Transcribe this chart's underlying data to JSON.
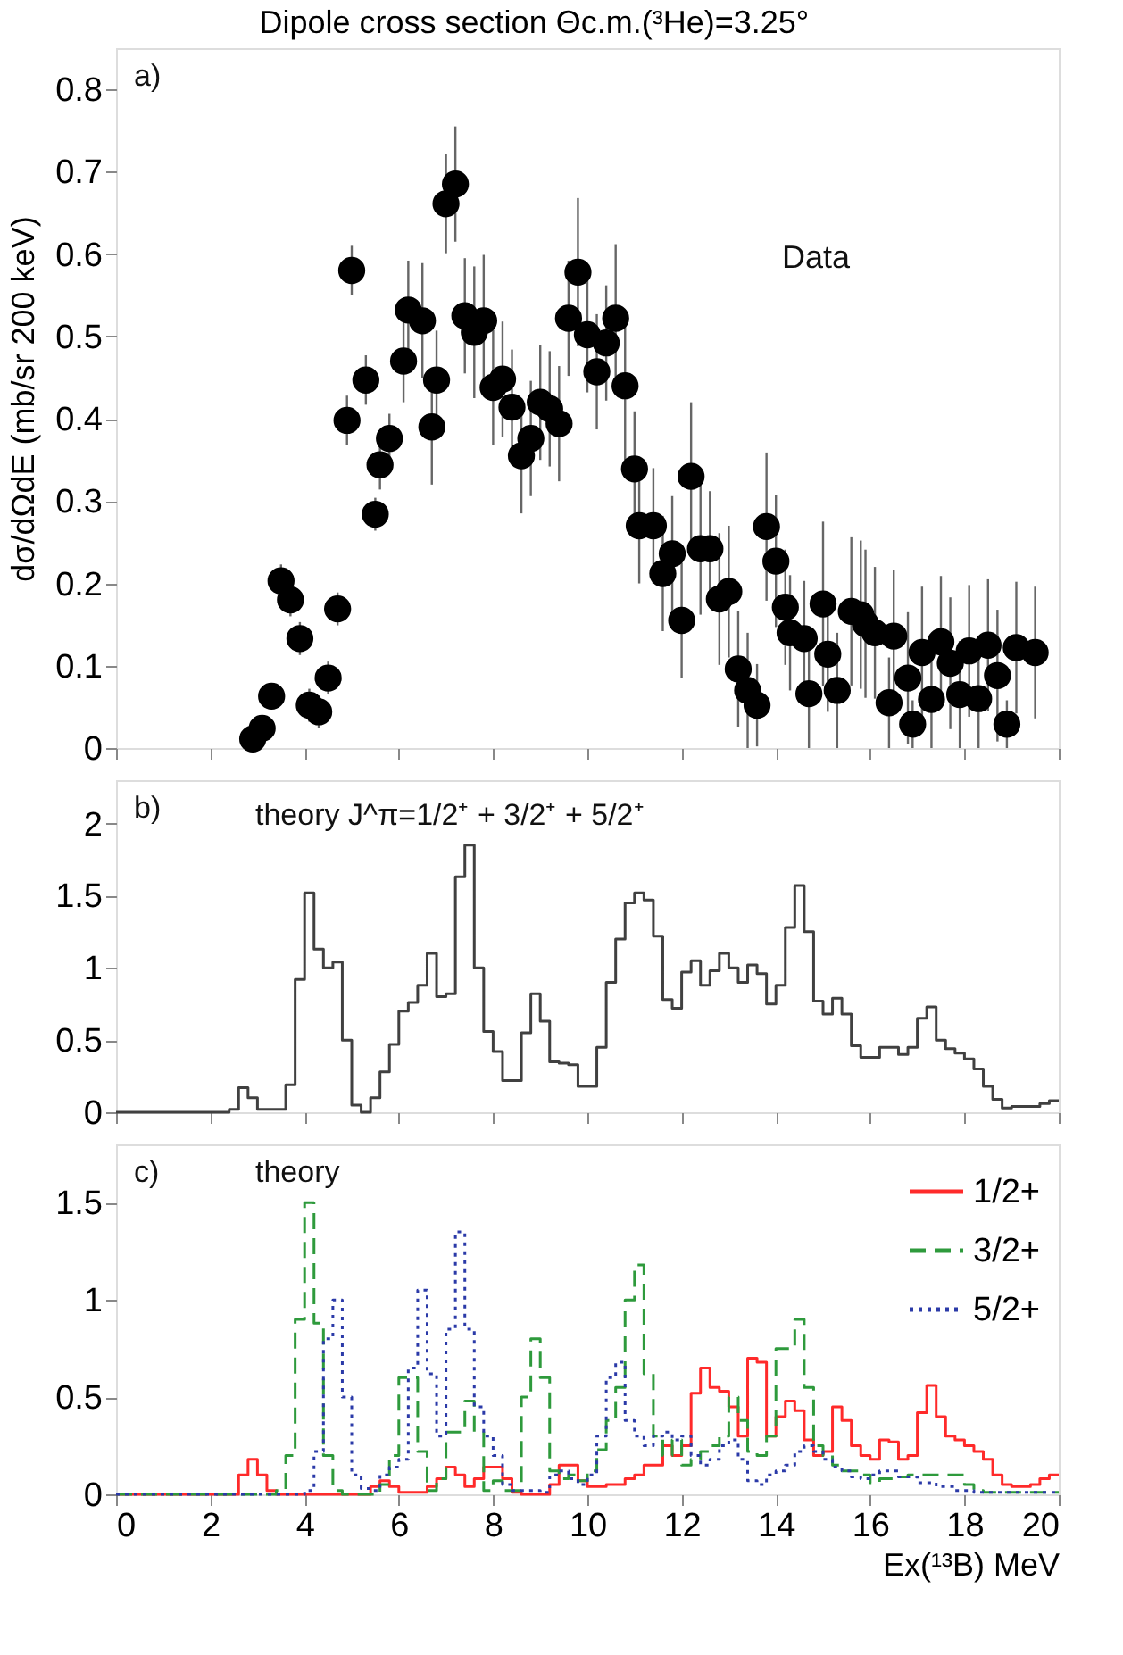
{
  "chart_data": [
    {
      "type": "scatter",
      "title": "Dipole cross section Θc.m.(³He)=3.25°",
      "ylabel": "dσ/dΩdE (mb/sr 200 keV)",
      "annotations": [
        "a)",
        "Data"
      ],
      "xlim": [
        0,
        20
      ],
      "xticks": [
        0,
        2,
        4,
        6,
        8,
        10,
        12,
        14,
        16,
        18,
        20
      ],
      "ylim": [
        0,
        0.85
      ],
      "yticks": [
        0,
        0.1,
        0.2,
        0.3,
        0.4,
        0.5,
        0.6,
        0.7,
        0.8
      ],
      "tick_labels": "y",
      "marker": "circle",
      "color": "#000000",
      "x": [
        2.9,
        3.1,
        3.3,
        3.5,
        3.7,
        3.9,
        4.1,
        4.3,
        4.5,
        4.7,
        4.9,
        5.0,
        5.3,
        5.5,
        5.6,
        5.8,
        6.1,
        6.2,
        6.5,
        6.7,
        6.8,
        7.0,
        7.2,
        7.4,
        7.6,
        7.8,
        8.0,
        8.2,
        8.4,
        8.6,
        8.8,
        9.0,
        9.2,
        9.4,
        9.6,
        9.8,
        10.0,
        10.2,
        10.4,
        10.6,
        10.8,
        11.0,
        11.1,
        11.4,
        11.6,
        11.8,
        12.0,
        12.2,
        12.4,
        12.6,
        12.8,
        13.0,
        13.2,
        13.4,
        13.6,
        13.8,
        14.0,
        14.2,
        14.3,
        14.6,
        14.7,
        15.0,
        15.1,
        15.3,
        15.6,
        15.8,
        15.9,
        16.1,
        16.4,
        16.5,
        16.8,
        16.9,
        17.1,
        17.3,
        17.5,
        17.7,
        17.9,
        18.1,
        18.3,
        18.5,
        18.7,
        18.9,
        19.1,
        19.5
      ],
      "values": [
        0.011,
        0.024,
        0.063,
        0.203,
        0.18,
        0.133,
        0.052,
        0.044,
        0.085,
        0.169,
        0.398,
        0.58,
        0.447,
        0.284,
        0.344,
        0.376,
        0.47,
        0.532,
        0.519,
        0.39,
        0.447,
        0.661,
        0.685,
        0.525,
        0.505,
        0.519,
        0.438,
        0.448,
        0.414,
        0.355,
        0.376,
        0.42,
        0.412,
        0.394,
        0.522,
        0.578,
        0.502,
        0.457,
        0.492,
        0.522,
        0.44,
        0.339,
        0.27,
        0.27,
        0.212,
        0.236,
        0.155,
        0.33,
        0.242,
        0.242,
        0.181,
        0.19,
        0.096,
        0.07,
        0.052,
        0.269,
        0.227,
        0.171,
        0.14,
        0.133,
        0.066,
        0.175,
        0.114,
        0.07,
        0.166,
        0.162,
        0.151,
        0.14,
        0.055,
        0.136,
        0.085,
        0.029,
        0.116,
        0.059,
        0.129,
        0.103,
        0.065,
        0.118,
        0.06,
        0.125,
        0.088,
        0.029,
        0.122,
        0.116
      ],
      "errors": [
        0.01,
        0.01,
        0.01,
        0.02,
        0.02,
        0.02,
        0.02,
        0.02,
        0.02,
        0.02,
        0.03,
        0.03,
        0.03,
        0.02,
        0.03,
        0.03,
        0.05,
        0.06,
        0.07,
        0.07,
        0.06,
        0.06,
        0.07,
        0.07,
        0.08,
        0.08,
        0.07,
        0.07,
        0.07,
        0.07,
        0.07,
        0.07,
        0.07,
        0.07,
        0.07,
        0.09,
        0.07,
        0.07,
        0.07,
        0.09,
        0.09,
        0.07,
        0.07,
        0.07,
        0.07,
        0.07,
        0.07,
        0.09,
        0.08,
        0.07,
        0.08,
        0.08,
        0.07,
        0.07,
        0.05,
        0.09,
        0.08,
        0.07,
        0.07,
        0.07,
        0.066,
        0.1,
        0.07,
        0.07,
        0.09,
        0.09,
        0.09,
        0.08,
        0.055,
        0.08,
        0.08,
        0.029,
        0.08,
        0.059,
        0.08,
        0.08,
        0.065,
        0.08,
        0.06,
        0.08,
        0.08,
        0.029,
        0.08,
        0.08
      ]
    },
    {
      "type": "step",
      "annotations": [
        "b)",
        "theory J^π=1/2⁺ + 3/2⁺ + 5/2⁺"
      ],
      "xlim": [
        0,
        20
      ],
      "xticks": [
        0,
        2,
        4,
        6,
        8,
        10,
        12,
        14,
        16,
        18,
        20
      ],
      "ylim": [
        0,
        2.3
      ],
      "yticks": [
        0,
        0.5,
        1,
        1.5,
        2
      ],
      "tick_labels": "y",
      "color": "#404040",
      "x": [
        0,
        0.2,
        0.4,
        0.6,
        0.8,
        1.0,
        1.2,
        1.4,
        1.6,
        1.8,
        2.0,
        2.2,
        2.4,
        2.6,
        2.8,
        3.0,
        3.2,
        3.4,
        3.6,
        3.8,
        4.0,
        4.2,
        4.4,
        4.6,
        4.8,
        5.0,
        5.2,
        5.4,
        5.6,
        5.8,
        6.0,
        6.2,
        6.4,
        6.6,
        6.8,
        7.0,
        7.2,
        7.4,
        7.6,
        7.8,
        8.0,
        8.2,
        8.4,
        8.6,
        8.8,
        9.0,
        9.2,
        9.4,
        9.6,
        9.8,
        10.0,
        10.2,
        10.4,
        10.6,
        10.8,
        11.0,
        11.2,
        11.4,
        11.6,
        11.8,
        12.0,
        12.2,
        12.4,
        12.6,
        12.8,
        13.0,
        13.2,
        13.4,
        13.6,
        13.8,
        14.0,
        14.2,
        14.4,
        14.6,
        14.8,
        15.0,
        15.2,
        15.4,
        15.6,
        15.8,
        16.0,
        16.2,
        16.4,
        16.6,
        16.8,
        17.0,
        17.2,
        17.4,
        17.6,
        17.8,
        18.0,
        18.2,
        18.4,
        18.6,
        18.8,
        19.0,
        19.2,
        19.4,
        19.6,
        19.8,
        20.0
      ],
      "values": [
        0,
        0,
        0,
        0,
        0,
        0,
        0,
        0,
        0,
        0,
        0,
        0,
        0.02,
        0.17,
        0.1,
        0.02,
        0.02,
        0.02,
        0.19,
        0.92,
        1.52,
        1.13,
        1.0,
        1.04,
        0.5,
        0.05,
        0.0,
        0.1,
        0.28,
        0.47,
        0.7,
        0.76,
        0.88,
        1.1,
        0.8,
        0.82,
        1.63,
        1.85,
        1.0,
        0.56,
        0.42,
        0.22,
        0.22,
        0.55,
        0.82,
        0.63,
        0.35,
        0.34,
        0.33,
        0.18,
        0.18,
        0.45,
        0.9,
        1.2,
        1.45,
        1.52,
        1.47,
        1.22,
        0.78,
        0.72,
        0.97,
        1.05,
        0.88,
        0.98,
        1.1,
        1.0,
        0.9,
        1.02,
        0.96,
        0.75,
        0.88,
        1.28,
        1.57,
        1.25,
        0.77,
        0.68,
        0.79,
        0.68,
        0.46,
        0.38,
        0.38,
        0.45,
        0.45,
        0.4,
        0.45,
        0.65,
        0.73,
        0.5,
        0.44,
        0.41,
        0.37,
        0.3,
        0.18,
        0.09,
        0.03,
        0.04,
        0.04,
        0.04,
        0.06,
        0.08,
        0.08
      ]
    },
    {
      "type": "step",
      "annotations": [
        "c)",
        "theory"
      ],
      "xlabel": "Ex(¹³B) MeV",
      "xlim": [
        0,
        20
      ],
      "xticks": [
        0,
        2,
        4,
        6,
        8,
        10,
        12,
        14,
        16,
        18,
        20
      ],
      "ylim": [
        0,
        1.8
      ],
      "yticks": [
        0,
        0.5,
        1,
        1.5
      ],
      "legend": "top right",
      "x": [
        0,
        0.2,
        0.4,
        0.6,
        0.8,
        1.0,
        1.2,
        1.4,
        1.6,
        1.8,
        2.0,
        2.2,
        2.4,
        2.6,
        2.8,
        3.0,
        3.2,
        3.4,
        3.6,
        3.8,
        4.0,
        4.2,
        4.4,
        4.6,
        4.8,
        5.0,
        5.2,
        5.4,
        5.6,
        5.8,
        6.0,
        6.2,
        6.4,
        6.6,
        6.8,
        7.0,
        7.2,
        7.4,
        7.6,
        7.8,
        8.0,
        8.2,
        8.4,
        8.6,
        8.8,
        9.0,
        9.2,
        9.4,
        9.6,
        9.8,
        10.0,
        10.2,
        10.4,
        10.6,
        10.8,
        11.0,
        11.2,
        11.4,
        11.6,
        11.8,
        12.0,
        12.2,
        12.4,
        12.6,
        12.8,
        13.0,
        13.2,
        13.4,
        13.6,
        13.8,
        14.0,
        14.2,
        14.4,
        14.6,
        14.8,
        15.0,
        15.2,
        15.4,
        15.6,
        15.8,
        16.0,
        16.2,
        16.4,
        16.6,
        16.8,
        17.0,
        17.2,
        17.4,
        17.6,
        17.8,
        18.0,
        18.2,
        18.4,
        18.6,
        18.8,
        19.0,
        19.2,
        19.4,
        19.6,
        19.8,
        20.0
      ],
      "series": [
        {
          "name": "1/2+",
          "color": "#ff2a2a",
          "line_style": "solid",
          "values": [
            0,
            0,
            0,
            0,
            0,
            0,
            0,
            0,
            0,
            0,
            0,
            0,
            0,
            0.1,
            0.18,
            0.1,
            0.02,
            0,
            0,
            0,
            0,
            0,
            0,
            0,
            0,
            0,
            0,
            0.04,
            0.07,
            0.04,
            0.01,
            0.01,
            0.01,
            0.04,
            0.08,
            0.14,
            0.1,
            0.04,
            0.08,
            0.14,
            0.14,
            0.08,
            0.01,
            0.0,
            0.0,
            0.0,
            0.05,
            0.15,
            0.15,
            0.07,
            0.04,
            0.04,
            0.05,
            0.05,
            0.08,
            0.1,
            0.15,
            0.15,
            0.25,
            0.2,
            0.25,
            0.52,
            0.65,
            0.55,
            0.53,
            0.45,
            0.3,
            0.7,
            0.68,
            0.3,
            0.4,
            0.48,
            0.43,
            0.28,
            0.2,
            0.22,
            0.45,
            0.38,
            0.25,
            0.2,
            0.18,
            0.28,
            0.27,
            0.18,
            0.2,
            0.42,
            0.56,
            0.4,
            0.3,
            0.28,
            0.25,
            0.22,
            0.18,
            0.1,
            0.05,
            0.04,
            0.04,
            0.05,
            0.08,
            0.1,
            0.1
          ]
        },
        {
          "name": "3/2+",
          "color": "#2e9a3c",
          "line_style": "dashed",
          "values": [
            0,
            0,
            0,
            0,
            0,
            0,
            0,
            0,
            0,
            0,
            0,
            0,
            0,
            0,
            0,
            0,
            0,
            0.02,
            0.2,
            0.9,
            1.5,
            0.88,
            0.2,
            0.02,
            0,
            0,
            0,
            0,
            0.05,
            0.2,
            0.6,
            0.6,
            0.22,
            0.02,
            0.08,
            0.32,
            0.32,
            0.48,
            0.32,
            0.02,
            0.07,
            0.02,
            0.02,
            0.5,
            0.8,
            0.6,
            0.12,
            0.08,
            0.1,
            0.07,
            0.12,
            0.23,
            0.38,
            0.55,
            1.0,
            1.18,
            0.62,
            0.3,
            0.2,
            0.28,
            0.15,
            0.18,
            0.22,
            0.25,
            0.3,
            0.5,
            0.38,
            0.22,
            0.2,
            0.3,
            0.75,
            0.75,
            0.9,
            0.55,
            0.25,
            0.2,
            0.15,
            0.12,
            0.12,
            0.1,
            0.06,
            0.08,
            0.08,
            0.09,
            0.1,
            0.1,
            0.1,
            0.1,
            0.1,
            0.1,
            0.05,
            0.02,
            0.01,
            0.01,
            0.01,
            0.01,
            0.01,
            0.01,
            0.01,
            0.01,
            0.01
          ]
        },
        {
          "name": "5/2+",
          "color": "#2b3aa8",
          "line_style": "dotted",
          "values": [
            0,
            0,
            0,
            0,
            0,
            0,
            0,
            0,
            0,
            0,
            0,
            0,
            0,
            0,
            0,
            0,
            0,
            0,
            0,
            0,
            0.02,
            0.22,
            0.8,
            1.0,
            0.5,
            0.1,
            0.03,
            0.02,
            0.1,
            0.14,
            0.18,
            0.65,
            1.05,
            0.62,
            0.3,
            0.85,
            1.35,
            0.85,
            0.45,
            0.3,
            0.2,
            0.05,
            0.02,
            0.02,
            0.02,
            0.01,
            0.1,
            0.12,
            0.08,
            0.05,
            0.1,
            0.3,
            0.6,
            0.68,
            0.38,
            0.3,
            0.25,
            0.3,
            0.32,
            0.28,
            0.3,
            0.2,
            0.15,
            0.18,
            0.25,
            0.28,
            0.18,
            0.07,
            0.05,
            0.1,
            0.12,
            0.15,
            0.22,
            0.25,
            0.22,
            0.18,
            0.14,
            0.12,
            0.09,
            0.08,
            0.1,
            0.12,
            0.12,
            0.09,
            0.09,
            0.06,
            0.06,
            0.04,
            0.04,
            0.02,
            0.02,
            0.01,
            0.01,
            0.01,
            0.01,
            0.01,
            0.01,
            0.01,
            0.01,
            0.01,
            0.01
          ]
        }
      ]
    }
  ]
}
